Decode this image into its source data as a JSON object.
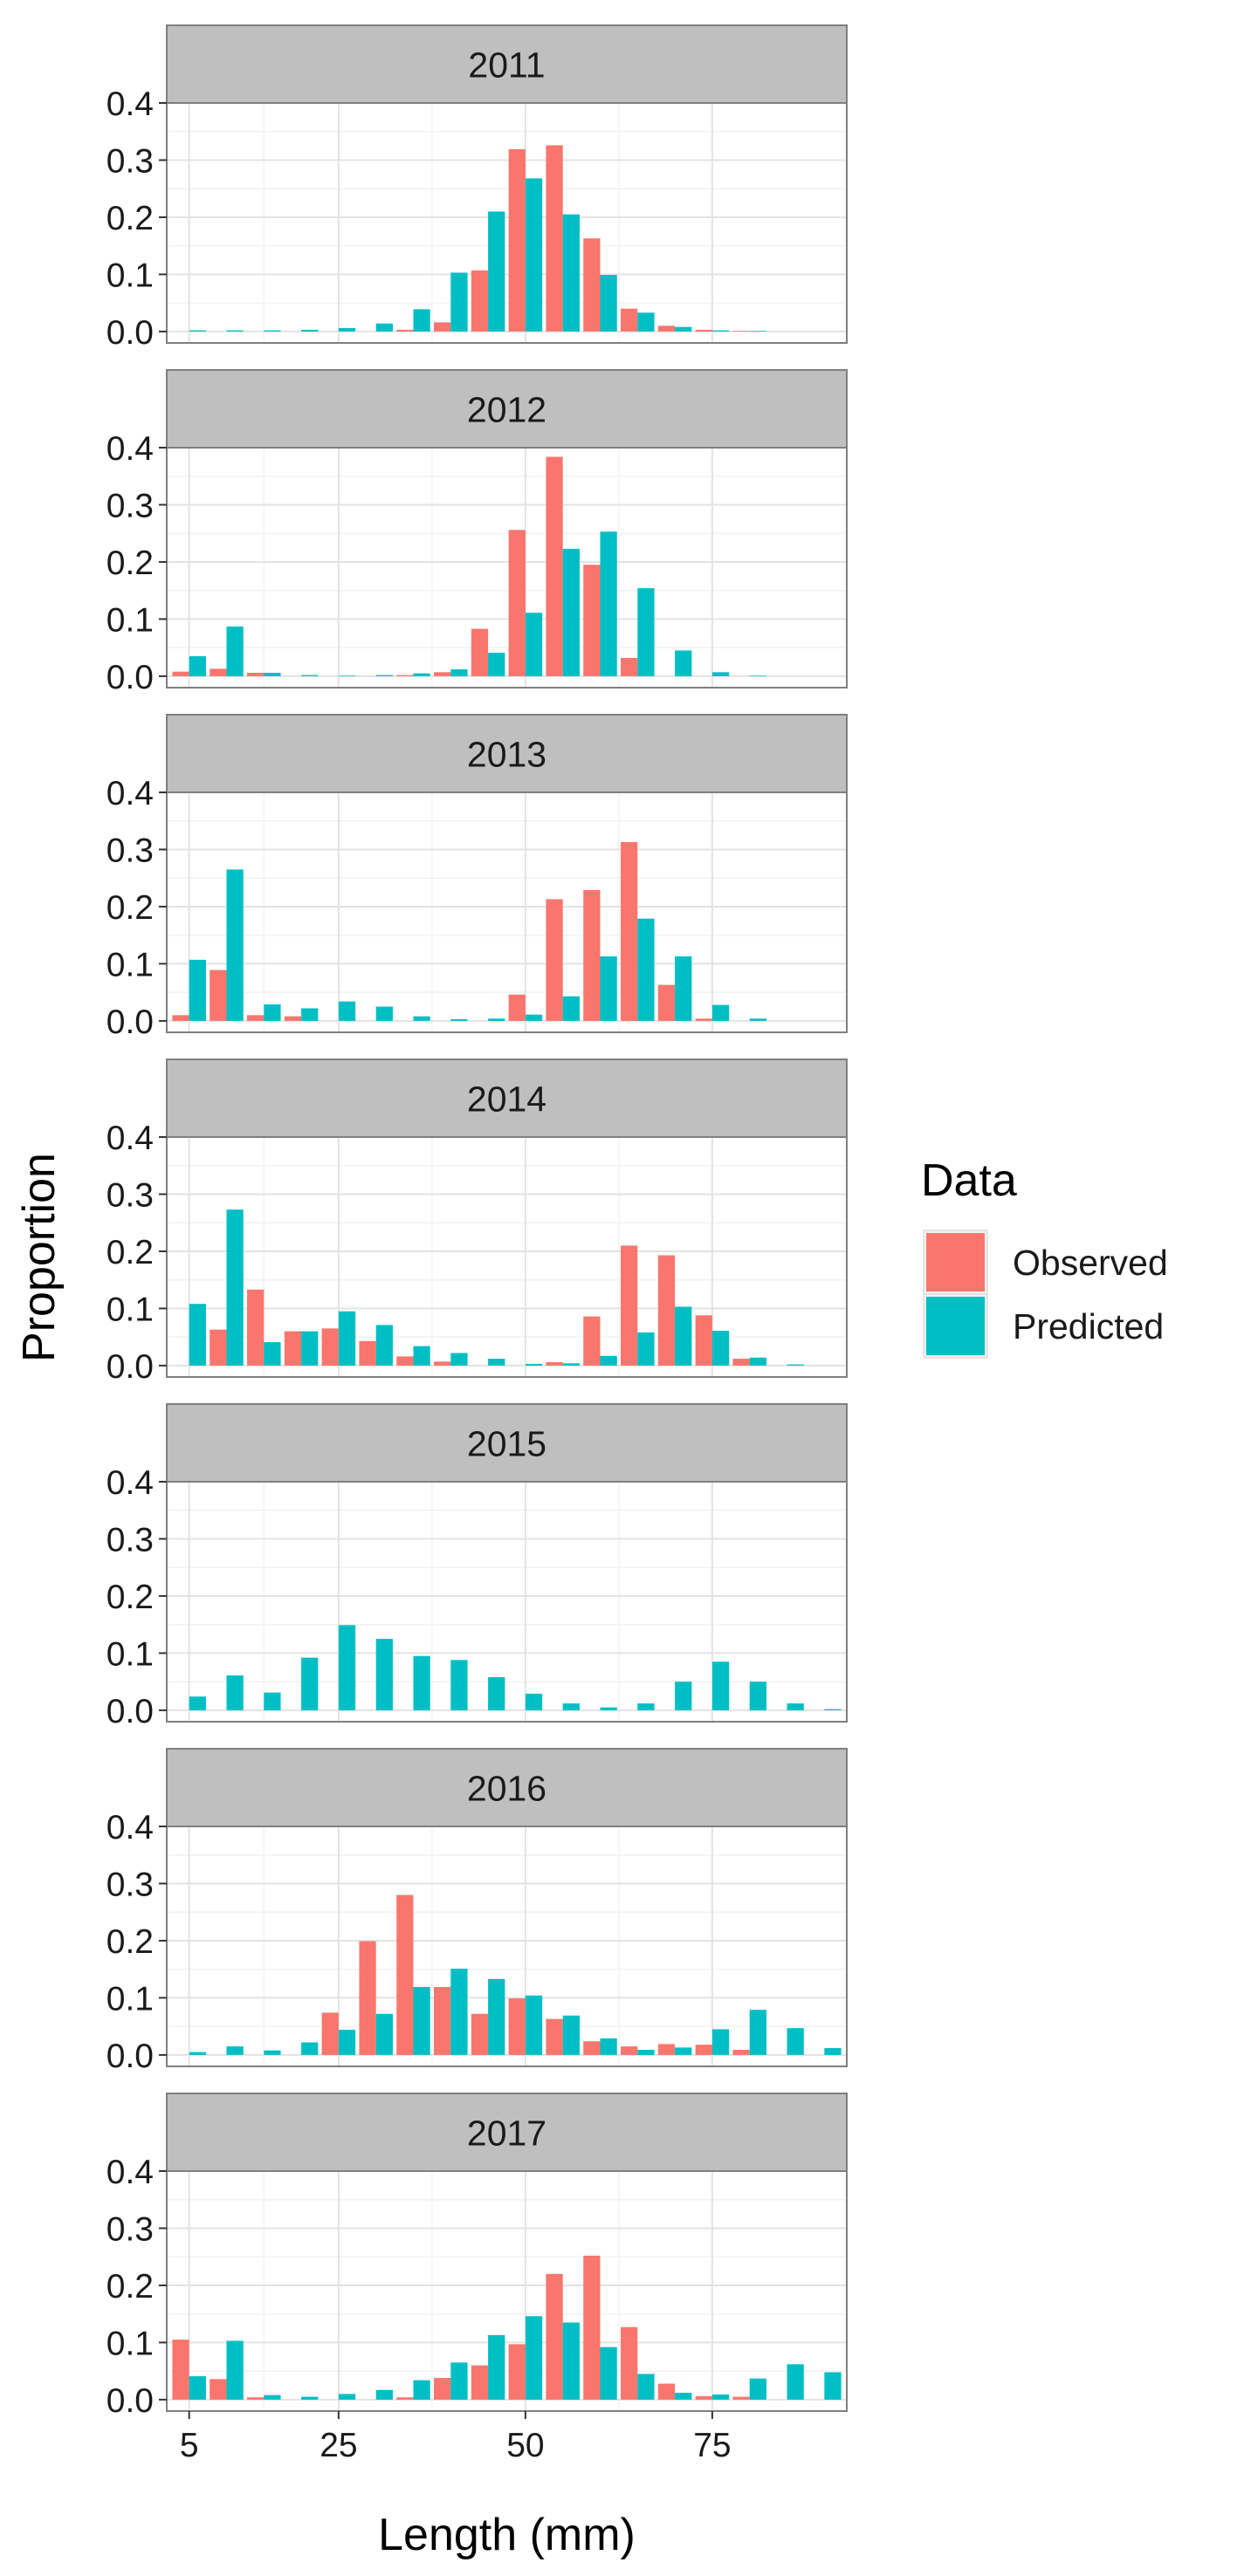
{
  "chart_data": {
    "type": "bar",
    "ylabel": "Proportion",
    "xlabel": "Length (mm)",
    "x_ticks": [
      5,
      25,
      50,
      75
    ],
    "y_ticks": [
      0.0,
      0.1,
      0.2,
      0.3,
      0.4
    ],
    "y_tick_labels": [
      "0.0",
      "0.1",
      "0.2",
      "0.3",
      "0.4"
    ],
    "xlim": [
      2,
      93
    ],
    "ylim": [
      -0.02,
      0.4
    ],
    "grid": true,
    "legend_position": "right",
    "legend": {
      "title": "Data",
      "entries": [
        {
          "label": "Observed",
          "color": "#F8766D"
        },
        {
          "label": "Predicted",
          "color": "#00BFC4"
        }
      ]
    },
    "bin_centers": [
      5,
      10,
      15,
      20,
      25,
      30,
      35,
      40,
      45,
      50,
      55,
      60,
      65,
      70,
      75,
      80,
      85,
      90
    ],
    "panels": [
      {
        "label": "2011",
        "observed": [
          0.0,
          0.0,
          0.0,
          0.0,
          0.0,
          0.0,
          0.003,
          0.016,
          0.107,
          0.319,
          0.326,
          0.163,
          0.04,
          0.01,
          0.003,
          0.001,
          0.0,
          0.0
        ],
        "predicted": [
          0.002,
          0.002,
          0.002,
          0.003,
          0.006,
          0.014,
          0.039,
          0.103,
          0.21,
          0.268,
          0.205,
          0.099,
          0.033,
          0.008,
          0.002,
          0.001,
          0.0,
          0.0
        ]
      },
      {
        "label": "2012",
        "observed": [
          0.008,
          0.013,
          0.006,
          0.0,
          0.0,
          0.0,
          0.002,
          0.007,
          0.083,
          0.256,
          0.384,
          0.195,
          0.032,
          0.0,
          0.0,
          0.0,
          0.0,
          0.0
        ],
        "predicted": [
          0.035,
          0.087,
          0.006,
          0.002,
          0.001,
          0.002,
          0.005,
          0.012,
          0.041,
          0.111,
          0.223,
          0.253,
          0.154,
          0.045,
          0.007,
          0.001,
          0.0,
          0.0
        ]
      },
      {
        "label": "2013",
        "observed": [
          0.01,
          0.089,
          0.01,
          0.008,
          0.0,
          0.0,
          0.0,
          0.0,
          0.0,
          0.046,
          0.213,
          0.229,
          0.313,
          0.063,
          0.004,
          0.0,
          0.0,
          0.0
        ],
        "predicted": [
          0.107,
          0.265,
          0.029,
          0.022,
          0.034,
          0.025,
          0.008,
          0.003,
          0.004,
          0.011,
          0.043,
          0.113,
          0.179,
          0.113,
          0.028,
          0.004,
          0.0,
          0.0
        ]
      },
      {
        "label": "2014",
        "observed": [
          0.0,
          0.063,
          0.133,
          0.06,
          0.065,
          0.043,
          0.016,
          0.007,
          0.0,
          0.0,
          0.006,
          0.086,
          0.21,
          0.193,
          0.088,
          0.012,
          0.0,
          0.0
        ],
        "predicted": [
          0.108,
          0.273,
          0.041,
          0.06,
          0.095,
          0.071,
          0.034,
          0.022,
          0.012,
          0.003,
          0.004,
          0.017,
          0.058,
          0.103,
          0.061,
          0.014,
          0.002,
          0.0
        ]
      },
      {
        "label": "2015",
        "observed": [
          0.0,
          0.0,
          0.0,
          0.0,
          0.0,
          0.0,
          0.0,
          0.0,
          0.0,
          0.0,
          0.0,
          0.0,
          0.0,
          0.0,
          0.0,
          0.0,
          0.0,
          0.0
        ],
        "predicted": [
          0.024,
          0.061,
          0.031,
          0.092,
          0.149,
          0.125,
          0.095,
          0.088,
          0.058,
          0.029,
          0.012,
          0.005,
          0.012,
          0.05,
          0.085,
          0.05,
          0.012,
          0.002
        ]
      },
      {
        "label": "2016",
        "observed": [
          0.0,
          0.0,
          0.0,
          0.0,
          0.074,
          0.199,
          0.28,
          0.119,
          0.072,
          0.099,
          0.063,
          0.024,
          0.015,
          0.019,
          0.018,
          0.009,
          0.0,
          0.0
        ],
        "predicted": [
          0.005,
          0.015,
          0.008,
          0.022,
          0.044,
          0.072,
          0.119,
          0.151,
          0.133,
          0.104,
          0.069,
          0.029,
          0.009,
          0.013,
          0.045,
          0.079,
          0.047,
          0.012
        ]
      },
      {
        "label": "2017",
        "observed": [
          0.105,
          0.036,
          0.004,
          0.0,
          0.0,
          0.0,
          0.004,
          0.038,
          0.06,
          0.097,
          0.22,
          0.252,
          0.127,
          0.028,
          0.006,
          0.005,
          0.0,
          0.0
        ],
        "predicted": [
          0.041,
          0.103,
          0.008,
          0.005,
          0.01,
          0.017,
          0.034,
          0.065,
          0.113,
          0.146,
          0.135,
          0.092,
          0.045,
          0.012,
          0.009,
          0.037,
          0.062,
          0.048
        ]
      }
    ]
  }
}
